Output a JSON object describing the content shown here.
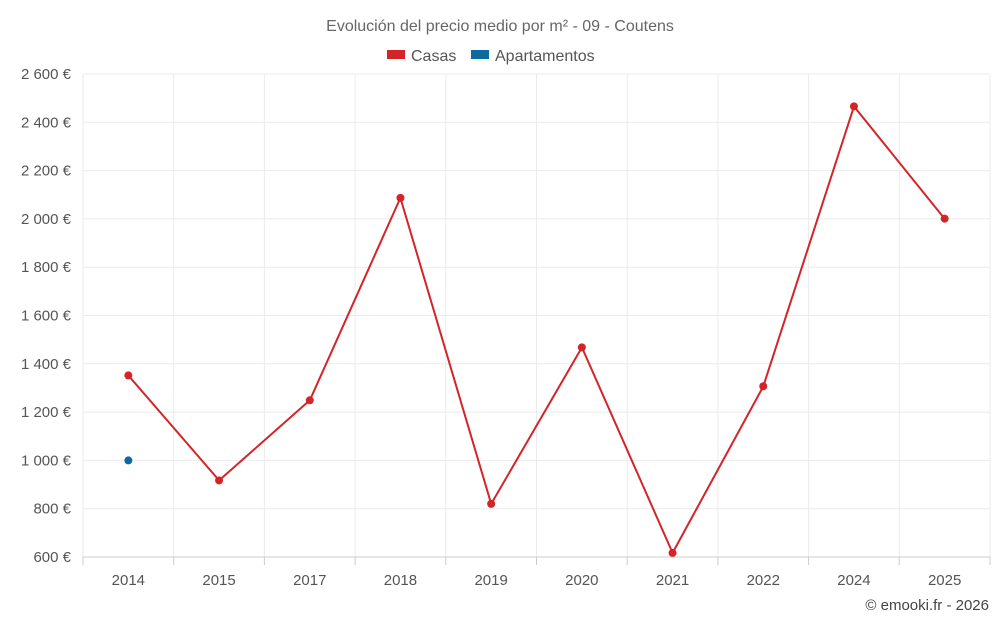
{
  "chart_data": {
    "type": "line",
    "title": "Evolución del precio medio por m² - 09 - Coutens",
    "categories": [
      "2014",
      "2015",
      "2017",
      "2018",
      "2019",
      "2020",
      "2021",
      "2022",
      "2024",
      "2025"
    ],
    "series": [
      {
        "name": "Casas",
        "color": "#d42428",
        "values": [
          1352,
          917,
          1249,
          2087,
          820,
          1468,
          617,
          1307,
          2466,
          2001
        ]
      },
      {
        "name": "Apartamentos",
        "color": "#0b6aa0",
        "values": [
          1000,
          null,
          null,
          null,
          null,
          null,
          null,
          null,
          null,
          null
        ]
      }
    ],
    "ylim": [
      600,
      2600
    ],
    "yticks": [
      600,
      800,
      1000,
      1200,
      1400,
      1600,
      1800,
      2000,
      2200,
      2400,
      2600
    ],
    "ytick_labels": [
      "600 €",
      "800 €",
      "1 000 €",
      "1 200 €",
      "1 400 €",
      "1 600 €",
      "1 800 €",
      "2 000 €",
      "2 200 €",
      "2 400 €",
      "2 600 €"
    ],
    "xlabel": "",
    "ylabel": "",
    "grid": true,
    "legend_position": "top-center"
  },
  "credit": "© emooki.fr - 2026"
}
